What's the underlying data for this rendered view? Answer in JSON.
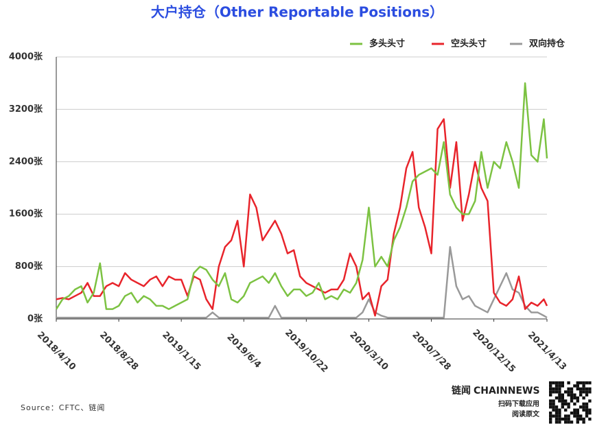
{
  "chart_data": {
    "type": "line",
    "title": "大户持仓（Other Reportable Positions）",
    "source": "Source：CFTC、链闻",
    "logo": {
      "brand": "链闻",
      "name": "CHAINNEWS",
      "line1": "扫码下载应用",
      "line2": "阅读原文"
    },
    "x": [
      "2018/4/10",
      "2018/4/24",
      "2018/5/8",
      "2018/5/22",
      "2018/6/5",
      "2018/6/19",
      "2018/7/3",
      "2018/7/17",
      "2018/7/31",
      "2018/8/14",
      "2018/8/28",
      "2018/9/11",
      "2018/9/25",
      "2018/10/9",
      "2018/10/23",
      "2018/11/6",
      "2018/11/20",
      "2018/12/4",
      "2018/12/18",
      "2019/1/1",
      "2019/1/15",
      "2019/1/29",
      "2019/2/12",
      "2019/2/26",
      "2019/3/12",
      "2019/3/26",
      "2019/4/9",
      "2019/4/23",
      "2019/5/7",
      "2019/5/21",
      "2019/6/4",
      "2019/6/18",
      "2019/7/2",
      "2019/7/16",
      "2019/7/30",
      "2019/8/13",
      "2019/8/27",
      "2019/9/10",
      "2019/9/24",
      "2019/10/8",
      "2019/10/22",
      "2019/11/5",
      "2019/11/19",
      "2019/12/3",
      "2019/12/17",
      "2019/12/31",
      "2020/1/14",
      "2020/1/28",
      "2020/2/11",
      "2020/2/25",
      "2020/3/10",
      "2020/3/24",
      "2020/4/7",
      "2020/4/21",
      "2020/5/5",
      "2020/5/19",
      "2020/6/2",
      "2020/6/16",
      "2020/6/30",
      "2020/7/14",
      "2020/7/28",
      "2020/8/11",
      "2020/8/25",
      "2020/9/8",
      "2020/9/22",
      "2020/10/6",
      "2020/10/20",
      "2020/11/3",
      "2020/11/17",
      "2020/12/1",
      "2020/12/15",
      "2020/12/29",
      "2021/1/12",
      "2021/1/26",
      "2021/2/9",
      "2021/2/23",
      "2021/3/9",
      "2021/3/23",
      "2021/4/6",
      "2021/4/13"
    ],
    "xticks": [
      "2018/4/10",
      "2018/8/28",
      "2019/1/15",
      "2019/6/4",
      "2019/10/22",
      "2020/3/10",
      "2020/7/28",
      "2020/12/15",
      "2021/4/13"
    ],
    "ylim": [
      0,
      4000
    ],
    "yticks": [
      {
        "value": 0,
        "label": "0张"
      },
      {
        "value": 800,
        "label": "800张"
      },
      {
        "value": 1600,
        "label": "1600张"
      },
      {
        "value": 2400,
        "label": "2400张"
      },
      {
        "value": 3200,
        "label": "3200张"
      },
      {
        "value": 4000,
        "label": "4000张"
      }
    ],
    "grid": true,
    "legend": "top-right",
    "series": [
      {
        "name": "多头头寸",
        "color": "#7cc242",
        "values": [
          150,
          300,
          350,
          450,
          500,
          250,
          400,
          850,
          150,
          150,
          200,
          350,
          400,
          250,
          350,
          300,
          200,
          200,
          150,
          200,
          250,
          300,
          700,
          800,
          750,
          600,
          500,
          700,
          300,
          250,
          350,
          550,
          600,
          650,
          550,
          700,
          500,
          350,
          450,
          450,
          350,
          400,
          550,
          300,
          350,
          300,
          450,
          400,
          550,
          900,
          1700,
          800,
          950,
          800,
          1200,
          1400,
          1700,
          2100,
          2200,
          2250,
          2300,
          2200,
          2700,
          1900,
          1700,
          1600,
          1600,
          1800,
          2550,
          2000,
          2400,
          2300,
          2700,
          2400,
          2000,
          3600,
          2500,
          2400,
          3050,
          2450
        ]
      },
      {
        "name": "空头头寸",
        "color": "#e8242b",
        "values": [
          300,
          320,
          300,
          350,
          400,
          550,
          350,
          350,
          500,
          550,
          500,
          700,
          600,
          550,
          500,
          600,
          650,
          500,
          650,
          600,
          600,
          350,
          650,
          600,
          300,
          150,
          800,
          1100,
          1200,
          1500,
          800,
          1900,
          1700,
          1200,
          1350,
          1500,
          1300,
          1000,
          1050,
          650,
          550,
          500,
          450,
          400,
          450,
          450,
          600,
          1000,
          800,
          300,
          400,
          50,
          500,
          600,
          1300,
          1700,
          2300,
          2550,
          1700,
          1400,
          1000,
          2900,
          3050,
          2000,
          2700,
          1500,
          1900,
          2400,
          2000,
          1800,
          400,
          250,
          200,
          300,
          650,
          150,
          250,
          200,
          300,
          200
        ]
      },
      {
        "name": "双向持仓",
        "color": "#999999",
        "values": [
          20,
          20,
          20,
          20,
          20,
          20,
          20,
          20,
          20,
          20,
          20,
          20,
          20,
          20,
          20,
          20,
          20,
          20,
          20,
          20,
          20,
          20,
          20,
          20,
          20,
          100,
          20,
          20,
          20,
          20,
          20,
          20,
          20,
          20,
          20,
          200,
          20,
          20,
          20,
          20,
          20,
          20,
          20,
          20,
          20,
          20,
          20,
          20,
          20,
          100,
          300,
          100,
          50,
          20,
          20,
          20,
          20,
          20,
          20,
          20,
          20,
          20,
          20,
          1100,
          500,
          300,
          350,
          200,
          150,
          100,
          300,
          500,
          700,
          450,
          400,
          200,
          100,
          100,
          50,
          20
        ]
      }
    ]
  }
}
